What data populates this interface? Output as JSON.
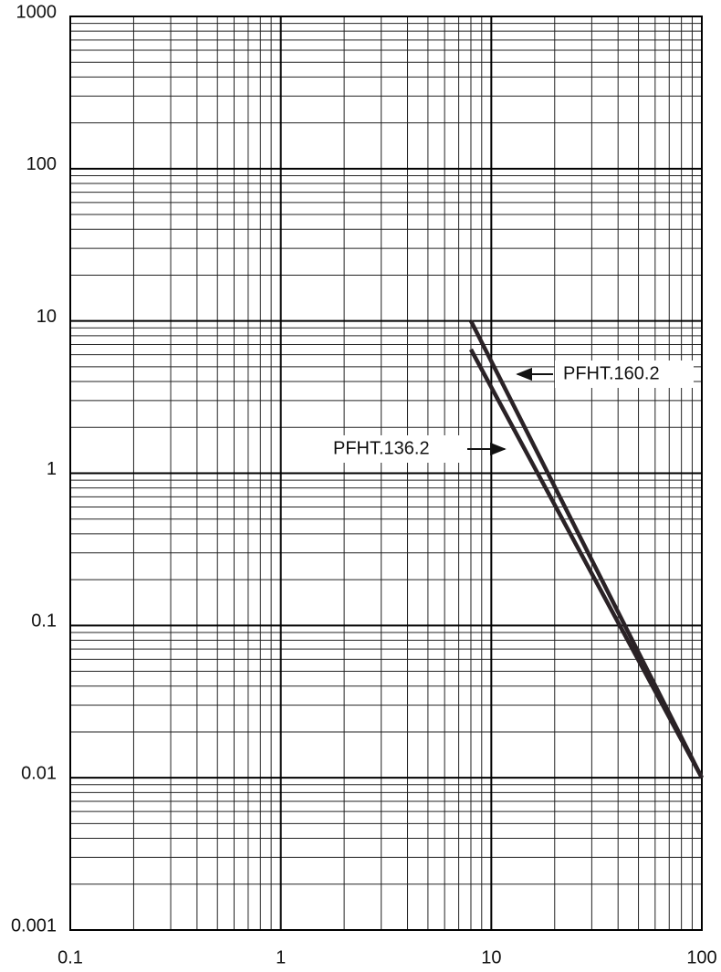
{
  "chart_data": {
    "type": "line",
    "series": [
      {
        "name": "PFHT.160.2",
        "color": "#2a2226",
        "x": [
          8,
          100
        ],
        "values": [
          10,
          0.01
        ]
      },
      {
        "name": "PFHT.136.2",
        "color": "#2a2226",
        "x": [
          8,
          100
        ],
        "values": [
          6.5,
          0.01
        ]
      }
    ],
    "xlog": true,
    "ylog": true,
    "grid": true,
    "xlim": [
      0.1,
      100
    ],
    "ylim": [
      0.001,
      1000
    ],
    "xticks": [
      0.1,
      1,
      10,
      100
    ],
    "yticks": [
      0.001,
      0.01,
      0.1,
      1,
      10,
      100,
      1000
    ],
    "xminorticks": [
      0.2,
      0.3,
      0.4,
      0.5,
      0.6,
      0.7,
      0.8,
      0.9,
      2,
      3,
      4,
      5,
      6,
      7,
      8,
      9,
      20,
      30,
      40,
      50,
      60,
      70,
      80,
      90
    ],
    "yminorticks": [
      0.002,
      0.003,
      0.004,
      0.005,
      0.006,
      0.007,
      0.008,
      0.009,
      0.02,
      0.03,
      0.04,
      0.05,
      0.06,
      0.07,
      0.08,
      0.09,
      0.2,
      0.3,
      0.4,
      0.5,
      0.6,
      0.7,
      0.8,
      0.9,
      2,
      3,
      4,
      5,
      6,
      7,
      8,
      9,
      20,
      30,
      40,
      50,
      60,
      70,
      80,
      90,
      200,
      300,
      400,
      500,
      600,
      700,
      800,
      900
    ]
  }
}
